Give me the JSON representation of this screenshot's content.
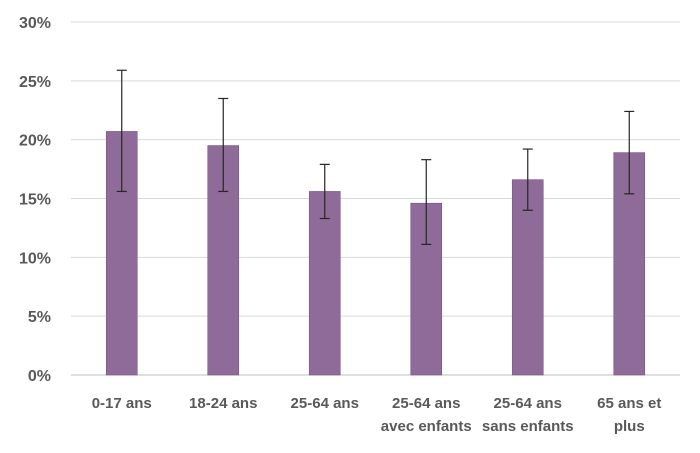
{
  "chart_data": {
    "type": "bar",
    "title": "",
    "xlabel": "",
    "ylabel": "",
    "ylim": [
      0,
      30
    ],
    "y_ticks": [
      0,
      5,
      10,
      15,
      20,
      25,
      30
    ],
    "y_tick_labels": [
      "0%",
      "5%",
      "10%",
      "15%",
      "20%",
      "25%",
      "30%"
    ],
    "grid": true,
    "legend": "none",
    "categories": [
      [
        "0-17 ans"
      ],
      [
        "18-24 ans"
      ],
      [
        "25-64 ans"
      ],
      [
        "25-64 ans",
        "avec enfants"
      ],
      [
        "25-64 ans",
        "sans enfants"
      ],
      [
        "65 ans et",
        "plus"
      ]
    ],
    "series": [
      {
        "values": [
          20.7,
          19.5,
          15.6,
          14.6,
          16.6,
          18.9
        ],
        "error_low": [
          15.6,
          15.6,
          13.3,
          11.1,
          14.0,
          15.4
        ],
        "error_high": [
          25.9,
          23.5,
          17.9,
          18.3,
          19.2,
          22.4
        ]
      }
    ],
    "bar_color": "#8e6b98",
    "bar_border_color": "#7a5586",
    "grid_color": "#d9d9d9",
    "error_bar_color": "#262626"
  }
}
